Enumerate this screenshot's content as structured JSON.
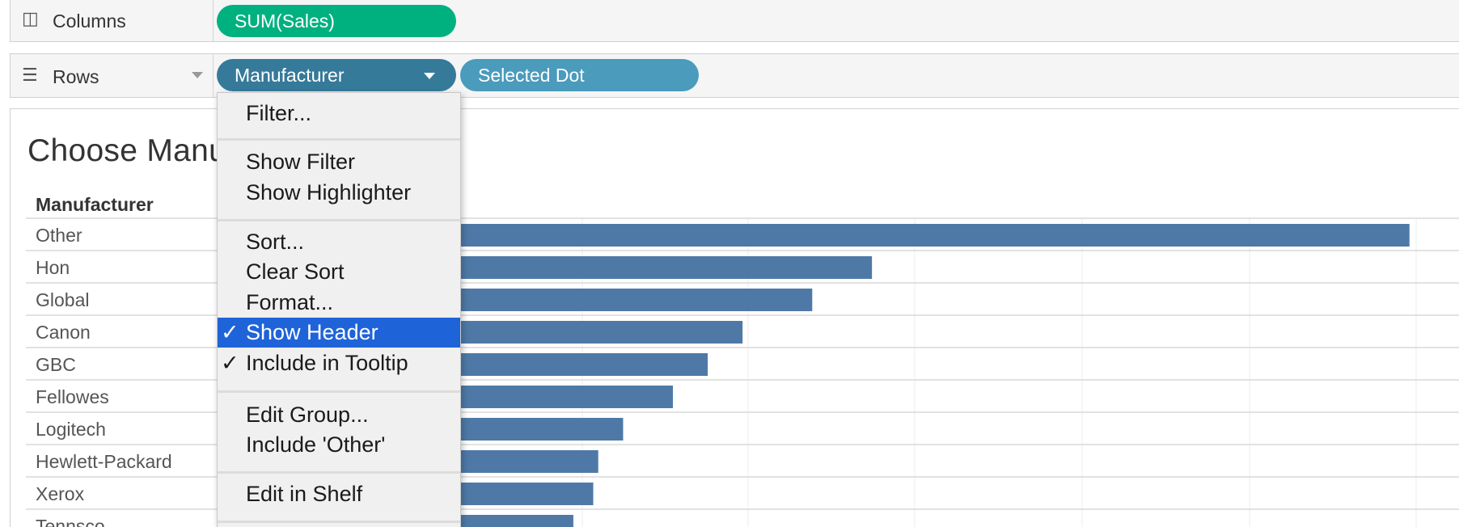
{
  "columns_shelf": {
    "label": "Columns",
    "icon": "columns-icon",
    "pill": "SUM(Sales)",
    "pill_color": "#00b180"
  },
  "rows_shelf": {
    "label": "Rows",
    "icon": "rows-icon",
    "pills": [
      {
        "label": "Manufacturer",
        "color": "#367a9a"
      },
      {
        "label": "Selected Dot",
        "color": "#4a9bbc"
      }
    ]
  },
  "view": {
    "title": "Choose Manufacturer",
    "row_header": "Manufacturer"
  },
  "context_menu": {
    "items": {
      "filter": "Filter...",
      "show_filter": "Show Filter",
      "show_highlighter": "Show Highlighter",
      "sort": "Sort...",
      "clear_sort": "Clear Sort",
      "format": "Format...",
      "show_header": "Show Header",
      "include_tooltip": "Include in Tooltip",
      "edit_group": "Edit Group...",
      "include_other": "Include 'Other'",
      "edit_shelf": "Edit in Shelf"
    },
    "checked": [
      "Show Header",
      "Include in Tooltip"
    ],
    "highlighted": "Show Header",
    "check_glyph": "✓",
    "highlight_color": "#1f63d8"
  },
  "chart_data": {
    "type": "bar",
    "orientation": "horizontal",
    "categories": [
      "Other",
      "Hon",
      "Global",
      "Canon",
      "GBC",
      "Fellowes",
      "Logitech",
      "Hewlett-Packard",
      "Xerox",
      "Tennsco"
    ],
    "values": [
      100,
      46,
      40,
      33,
      29.5,
      26,
      21,
      18.5,
      18,
      16
    ],
    "xlim": [
      0,
      104
    ],
    "bar_color": "#4e79a7",
    "grid": true
  }
}
